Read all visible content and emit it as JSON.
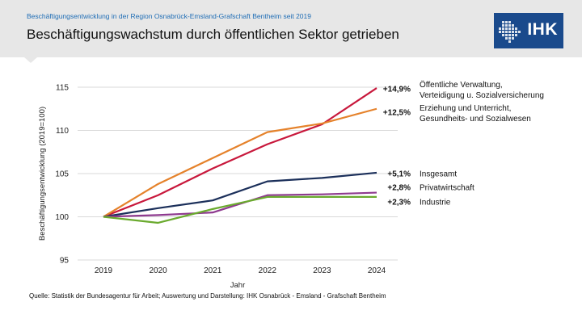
{
  "header": {
    "subtitle": "Beschäftigungsentwicklung in der Region Osnabrück-Emsland-Grafschaft Bentheim seit 2019",
    "title": "Beschäftigungswachstum durch öffentlichen Sektor getrieben",
    "logo_text": "IHK"
  },
  "source": "Quelle: Statistik der Bundesagentur für Arbeit; Auswertung und Darstellung: IHK Osnabrück - Emsland - Grafschaft Bentheim",
  "colors": {
    "header_bg": "#e7e7e7",
    "logo_bg": "#1a4a8c",
    "subtitle": "#1f6db5"
  },
  "chart_data": {
    "type": "line",
    "title": "Beschäftigungswachstum durch öffentlichen Sektor getrieben",
    "xlabel": "Jahr",
    "ylabel": "Beschäftigungsentwicklung (2019=100)",
    "x": [
      "2019",
      "2020",
      "2021",
      "2022",
      "2023",
      "2024"
    ],
    "ylim": [
      95,
      115
    ],
    "yticks": [
      95,
      100,
      105,
      110,
      115
    ],
    "grid": true,
    "series": [
      {
        "name": "Öffentliche Verwaltung, Verteidigung u. Sozialversicherung",
        "label_lines": [
          "Öffentliche Verwaltung,",
          "Verteidigung u. Sozialversicherung"
        ],
        "value_label": "+14,9%",
        "color": "#c8183c",
        "values": [
          100,
          102.5,
          105.6,
          108.4,
          110.7,
          114.9
        ]
      },
      {
        "name": "Erziehung und Unterricht, Gesundheits- und Sozialwesen",
        "label_lines": [
          "Erziehung und Unterricht,",
          "Gesundheits- und Sozialwesen"
        ],
        "value_label": "+12,5%",
        "color": "#e5822b",
        "values": [
          100,
          103.8,
          106.8,
          109.8,
          110.8,
          112.5
        ]
      },
      {
        "name": "Insgesamt",
        "label_lines": [
          "Insgesamt"
        ],
        "value_label": "+5,1%",
        "color": "#1b2f5a",
        "values": [
          100,
          101.0,
          101.9,
          104.1,
          104.5,
          105.1
        ]
      },
      {
        "name": "Privatwirtschaft",
        "label_lines": [
          "Privatwirtschaft"
        ],
        "value_label": "+2,8%",
        "color": "#8e3a8f",
        "values": [
          100,
          100.2,
          100.5,
          102.5,
          102.6,
          102.8
        ]
      },
      {
        "name": "Industrie",
        "label_lines": [
          "Industrie"
        ],
        "value_label": "+2,3%",
        "color": "#6aaa2e",
        "values": [
          100,
          99.3,
          100.9,
          102.3,
          102.3,
          102.3
        ]
      }
    ]
  }
}
